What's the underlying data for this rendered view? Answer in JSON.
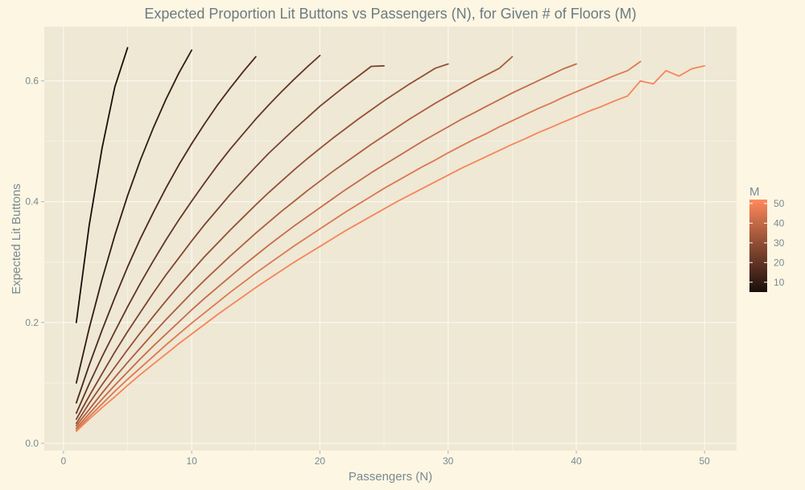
{
  "chart_data": {
    "type": "line",
    "title": "Expected Proportion Lit Buttons vs Passengers (N), for Given # of Floors (M)",
    "xlabel": "Passengers (N)",
    "ylabel": "Expected Lit Buttons",
    "xlim": [
      -1.5,
      52.5
    ],
    "ylim": [
      -0.012,
      0.69
    ],
    "xticks": [
      0,
      10,
      20,
      30,
      40,
      50
    ],
    "yticks": [
      0.0,
      0.2,
      0.4,
      0.6
    ],
    "xtick_labels": [
      "0",
      "10",
      "20",
      "30",
      "40",
      "50"
    ],
    "ytick_labels": [
      "0.0",
      "0.2",
      "0.4",
      "0.6"
    ],
    "grid": true,
    "legend": {
      "title": "M",
      "position": "right",
      "type": "colorbar",
      "range": [
        5,
        52
      ],
      "ticks": [
        10,
        20,
        30,
        40,
        50
      ],
      "tick_labels": [
        "10",
        "20",
        "30",
        "40",
        "50"
      ]
    },
    "colors": {
      "background": "#fdf6e3",
      "panel": "#eee8d5",
      "grid": "#fbf8f0",
      "text": "#7a8a90",
      "low": "#1a0f0a",
      "high": "#ff8a5c"
    },
    "series": [
      {
        "M": 5,
        "x": [
          1,
          2,
          3,
          4,
          5
        ],
        "y": [
          0.2,
          0.36,
          0.488,
          0.59,
          0.655
        ]
      },
      {
        "M": 10,
        "x": [
          1,
          2,
          3,
          4,
          5,
          6,
          7,
          8,
          9,
          10
        ],
        "y": [
          0.1,
          0.19,
          0.271,
          0.344,
          0.41,
          0.469,
          0.522,
          0.57,
          0.613,
          0.651
        ]
      },
      {
        "M": 15,
        "x": [
          1,
          2,
          3,
          4,
          5,
          6,
          7,
          8,
          9,
          10,
          11,
          12,
          13,
          14,
          15
        ],
        "y": [
          0.067,
          0.129,
          0.187,
          0.241,
          0.292,
          0.339,
          0.382,
          0.423,
          0.461,
          0.496,
          0.529,
          0.56,
          0.588,
          0.615,
          0.64
        ]
      },
      {
        "M": 20,
        "x": [
          1,
          2,
          3,
          4,
          5,
          6,
          7,
          8,
          9,
          10,
          11,
          12,
          13,
          14,
          15,
          16,
          17,
          18,
          19,
          20
        ],
        "y": [
          0.05,
          0.098,
          0.143,
          0.185,
          0.226,
          0.265,
          0.302,
          0.337,
          0.37,
          0.401,
          0.431,
          0.46,
          0.487,
          0.512,
          0.537,
          0.56,
          0.582,
          0.603,
          0.623,
          0.642
        ]
      },
      {
        "M": 25,
        "x": [
          1,
          2,
          3,
          4,
          5,
          6,
          7,
          8,
          9,
          10,
          11,
          12,
          13,
          14,
          15,
          16,
          17,
          18,
          19,
          20,
          21,
          22,
          23,
          24,
          25
        ],
        "y": [
          0.04,
          0.078,
          0.115,
          0.151,
          0.185,
          0.217,
          0.249,
          0.279,
          0.307,
          0.335,
          0.362,
          0.387,
          0.412,
          0.435,
          0.458,
          0.48,
          0.5,
          0.52,
          0.539,
          0.558,
          0.575,
          0.592,
          0.608,
          0.624,
          0.625
        ]
      },
      {
        "M": 30,
        "x": [
          1,
          2,
          3,
          4,
          5,
          6,
          7,
          8,
          9,
          10,
          11,
          12,
          13,
          14,
          15,
          16,
          17,
          18,
          19,
          20,
          21,
          22,
          23,
          24,
          25,
          26,
          27,
          28,
          29,
          30
        ],
        "y": [
          0.033,
          0.066,
          0.097,
          0.126,
          0.155,
          0.183,
          0.21,
          0.236,
          0.261,
          0.285,
          0.309,
          0.331,
          0.353,
          0.374,
          0.395,
          0.415,
          0.434,
          0.453,
          0.471,
          0.488,
          0.505,
          0.521,
          0.537,
          0.552,
          0.567,
          0.581,
          0.595,
          0.608,
          0.621,
          0.628
        ]
      },
      {
        "M": 35,
        "x": [
          1,
          2,
          3,
          4,
          5,
          6,
          7,
          8,
          9,
          10,
          11,
          12,
          13,
          14,
          15,
          16,
          17,
          18,
          19,
          20,
          21,
          22,
          23,
          24,
          25,
          26,
          27,
          28,
          29,
          30,
          31,
          32,
          33,
          34,
          35
        ],
        "y": [
          0.029,
          0.056,
          0.083,
          0.109,
          0.134,
          0.158,
          0.182,
          0.205,
          0.227,
          0.249,
          0.27,
          0.29,
          0.31,
          0.329,
          0.348,
          0.366,
          0.384,
          0.401,
          0.418,
          0.434,
          0.45,
          0.465,
          0.48,
          0.495,
          0.509,
          0.523,
          0.537,
          0.55,
          0.563,
          0.575,
          0.587,
          0.599,
          0.61,
          0.621,
          0.64
        ]
      },
      {
        "M": 40,
        "x": [
          1,
          2,
          3,
          4,
          5,
          6,
          7,
          8,
          9,
          10,
          11,
          12,
          13,
          14,
          15,
          16,
          17,
          18,
          19,
          20,
          21,
          22,
          23,
          24,
          25,
          26,
          27,
          28,
          29,
          30,
          31,
          32,
          33,
          34,
          35,
          36,
          37,
          38,
          39,
          40
        ],
        "y": [
          0.025,
          0.049,
          0.073,
          0.096,
          0.118,
          0.14,
          0.161,
          0.181,
          0.201,
          0.221,
          0.24,
          0.258,
          0.276,
          0.294,
          0.311,
          0.328,
          0.344,
          0.36,
          0.375,
          0.39,
          0.405,
          0.42,
          0.434,
          0.448,
          0.461,
          0.474,
          0.487,
          0.5,
          0.512,
          0.524,
          0.536,
          0.547,
          0.558,
          0.569,
          0.58,
          0.59,
          0.6,
          0.61,
          0.62,
          0.628
        ]
      },
      {
        "M": 45,
        "x": [
          1,
          2,
          3,
          4,
          5,
          6,
          7,
          8,
          9,
          10,
          11,
          12,
          13,
          14,
          15,
          16,
          17,
          18,
          19,
          20,
          21,
          22,
          23,
          24,
          25,
          26,
          27,
          28,
          29,
          30,
          31,
          32,
          33,
          34,
          35,
          36,
          37,
          38,
          39,
          40,
          41,
          42,
          43,
          44,
          45
        ],
        "y": [
          0.022,
          0.044,
          0.065,
          0.086,
          0.106,
          0.125,
          0.144,
          0.163,
          0.181,
          0.199,
          0.216,
          0.233,
          0.25,
          0.266,
          0.282,
          0.297,
          0.312,
          0.327,
          0.341,
          0.355,
          0.369,
          0.383,
          0.396,
          0.409,
          0.422,
          0.434,
          0.446,
          0.458,
          0.469,
          0.481,
          0.492,
          0.503,
          0.513,
          0.524,
          0.534,
          0.544,
          0.554,
          0.563,
          0.573,
          0.582,
          0.591,
          0.6,
          0.609,
          0.617,
          0.632
        ]
      },
      {
        "M": 50,
        "x": [
          1,
          2,
          3,
          4,
          5,
          6,
          7,
          8,
          9,
          10,
          11,
          12,
          13,
          14,
          15,
          16,
          17,
          18,
          19,
          20,
          21,
          22,
          23,
          24,
          25,
          26,
          27,
          28,
          29,
          30,
          31,
          32,
          33,
          34,
          35,
          36,
          37,
          38,
          39,
          40,
          41,
          42,
          43,
          44,
          45,
          46,
          47,
          48,
          49,
          50
        ],
        "y": [
          0.02,
          0.04,
          0.059,
          0.077,
          0.096,
          0.114,
          0.131,
          0.148,
          0.165,
          0.181,
          0.197,
          0.213,
          0.228,
          0.243,
          0.258,
          0.272,
          0.286,
          0.3,
          0.313,
          0.326,
          0.339,
          0.352,
          0.364,
          0.376,
          0.388,
          0.4,
          0.411,
          0.422,
          0.433,
          0.444,
          0.455,
          0.465,
          0.475,
          0.485,
          0.495,
          0.504,
          0.514,
          0.523,
          0.532,
          0.541,
          0.55,
          0.558,
          0.567,
          0.575,
          0.6,
          0.595,
          0.617,
          0.608,
          0.62,
          0.625
        ]
      }
    ]
  }
}
